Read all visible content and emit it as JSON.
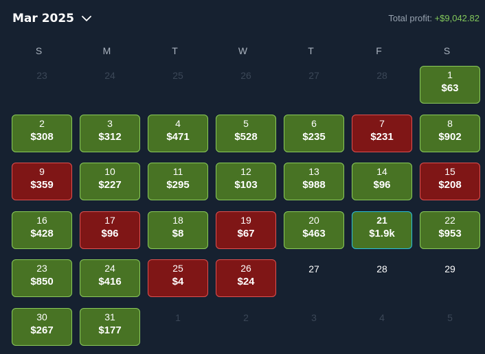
{
  "header": {
    "month_label": "Mar 2025",
    "total_label": "Total profit:",
    "total_value": "+$9,042.82"
  },
  "colors": {
    "background": "#162130",
    "profit_fill": "#487324",
    "profit_border": "#8bcb5a",
    "loss_fill": "#7f1616",
    "loss_border": "#e0504f",
    "today_border": "#28c0de",
    "total_value": "#83c95b"
  },
  "weekdays": [
    "S",
    "M",
    "T",
    "W",
    "T",
    "F",
    "S"
  ],
  "weeks": [
    [
      {
        "day": "23",
        "kind": "other"
      },
      {
        "day": "24",
        "kind": "other"
      },
      {
        "day": "25",
        "kind": "other"
      },
      {
        "day": "26",
        "kind": "other"
      },
      {
        "day": "27",
        "kind": "other"
      },
      {
        "day": "28",
        "kind": "other"
      },
      {
        "day": "1",
        "kind": "profit",
        "amount": "$63"
      }
    ],
    [
      {
        "day": "2",
        "kind": "profit",
        "amount": "$308"
      },
      {
        "day": "3",
        "kind": "profit",
        "amount": "$312"
      },
      {
        "day": "4",
        "kind": "profit",
        "amount": "$471"
      },
      {
        "day": "5",
        "kind": "profit",
        "amount": "$528"
      },
      {
        "day": "6",
        "kind": "profit",
        "amount": "$235"
      },
      {
        "day": "7",
        "kind": "loss",
        "amount": "$231"
      },
      {
        "day": "8",
        "kind": "profit",
        "amount": "$902"
      }
    ],
    [
      {
        "day": "9",
        "kind": "loss",
        "amount": "$359"
      },
      {
        "day": "10",
        "kind": "profit",
        "amount": "$227"
      },
      {
        "day": "11",
        "kind": "profit",
        "amount": "$295"
      },
      {
        "day": "12",
        "kind": "profit",
        "amount": "$103"
      },
      {
        "day": "13",
        "kind": "profit",
        "amount": "$988"
      },
      {
        "day": "14",
        "kind": "profit",
        "amount": "$96"
      },
      {
        "day": "15",
        "kind": "loss",
        "amount": "$208"
      }
    ],
    [
      {
        "day": "16",
        "kind": "profit",
        "amount": "$428"
      },
      {
        "day": "17",
        "kind": "loss",
        "amount": "$96"
      },
      {
        "day": "18",
        "kind": "profit",
        "amount": "$8"
      },
      {
        "day": "19",
        "kind": "loss",
        "amount": "$67"
      },
      {
        "day": "20",
        "kind": "profit",
        "amount": "$463"
      },
      {
        "day": "21",
        "kind": "profit",
        "amount": "$1.9k",
        "today": true
      },
      {
        "day": "22",
        "kind": "profit",
        "amount": "$953"
      }
    ],
    [
      {
        "day": "23",
        "kind": "profit",
        "amount": "$850"
      },
      {
        "day": "24",
        "kind": "profit",
        "amount": "$416"
      },
      {
        "day": "25",
        "kind": "loss",
        "amount": "$4"
      },
      {
        "day": "26",
        "kind": "loss",
        "amount": "$24"
      },
      {
        "day": "27",
        "kind": "empty"
      },
      {
        "day": "28",
        "kind": "empty"
      },
      {
        "day": "29",
        "kind": "empty"
      }
    ],
    [
      {
        "day": "30",
        "kind": "profit",
        "amount": "$267"
      },
      {
        "day": "31",
        "kind": "profit",
        "amount": "$177"
      },
      {
        "day": "1",
        "kind": "other"
      },
      {
        "day": "2",
        "kind": "other"
      },
      {
        "day": "3",
        "kind": "other"
      },
      {
        "day": "4",
        "kind": "other"
      },
      {
        "day": "5",
        "kind": "other"
      }
    ]
  ]
}
